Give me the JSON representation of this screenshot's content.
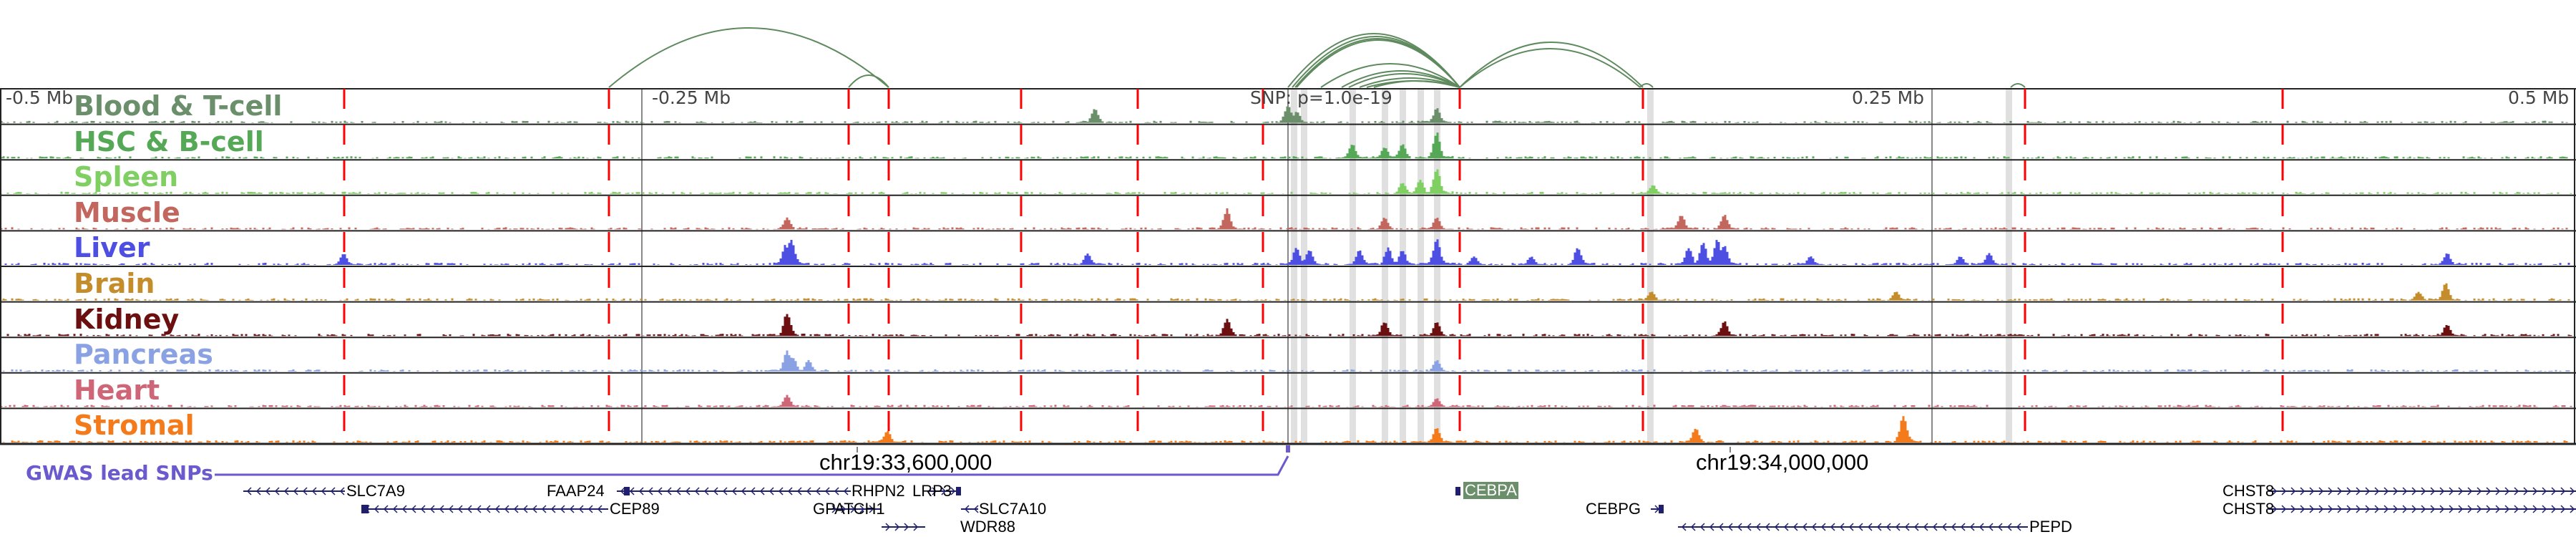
{
  "axis": {
    "left_label": "-0.5 Mb",
    "minus_quarter_label": "-0.25 Mb",
    "snp_label": "SNP: p=1.0e-19",
    "plus_quarter_label": "0.25 Mb",
    "right_label": "0.5 Mb"
  },
  "tracks": [
    {
      "label": "Blood & T-cell",
      "color": "#6a8f6a"
    },
    {
      "label": "HSC & B-cell",
      "color": "#55a855"
    },
    {
      "label": "Spleen",
      "color": "#7fcf62"
    },
    {
      "label": "Muscle",
      "color": "#c3665e"
    },
    {
      "label": "Liver",
      "color": "#4d4fe3"
    },
    {
      "label": "Brain",
      "color": "#c48c2a"
    },
    {
      "label": "Kidney",
      "color": "#6b0f10"
    },
    {
      "label": "Pancreas",
      "color": "#8aa2e3"
    },
    {
      "label": "Heart",
      "color": "#cf6677"
    },
    {
      "label": "Stromal",
      "color": "#f47b1c"
    }
  ],
  "gwas": {
    "label": "GWAS lead SNPs",
    "color": "#6a5acd"
  },
  "coordinates": {
    "left": "chr19:33,600,000",
    "right": "chr19:34,000,000"
  },
  "genes": [
    {
      "name": "SLC7A9",
      "strand": "-"
    },
    {
      "name": "FAAP24",
      "strand": "-"
    },
    {
      "name": "RHPN2",
      "strand": "-"
    },
    {
      "name": "CEP89",
      "strand": "-"
    },
    {
      "name": "GPATCH1",
      "strand": "+"
    },
    {
      "name": "WDR88",
      "strand": "+"
    },
    {
      "name": "LRP3",
      "strand": "+"
    },
    {
      "name": "SLC7A10",
      "strand": "-"
    },
    {
      "name": "CEBPA",
      "strand": "-",
      "highlight": true
    },
    {
      "name": "CEBPG",
      "strand": "+"
    },
    {
      "name": "PEPD",
      "strand": "-"
    },
    {
      "name": "CHST8",
      "strand": "+"
    },
    {
      "name": "CHST8",
      "strand": "+"
    }
  ],
  "colors": {
    "arc": "#5e8a5e",
    "enhancer_line": "#ff0000",
    "gene": "#1f1f6e",
    "highlight_col": "#dcdcdc",
    "cebpa_bg": "#6a8f6a"
  }
}
